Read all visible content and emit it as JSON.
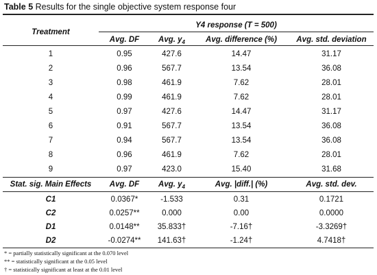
{
  "caption": {
    "label": "Table 5",
    "text": "Results for the single objective system response four"
  },
  "header": {
    "treatment": "Treatment",
    "group": "Y4 response (T = 500)",
    "avg_df": "Avg. DF",
    "avg_y": "Avg. y",
    "avg_y_sub": "4",
    "avg_diff": "Avg. difference (%)",
    "avg_std": "Avg. std. deviation"
  },
  "rows": [
    {
      "treatment": "1",
      "df": "0.95",
      "y": "427.6",
      "diff": "14.47",
      "std": "31.17"
    },
    {
      "treatment": "2",
      "df": "0.96",
      "y": "567.7",
      "diff": "13.54",
      "std": "36.08"
    },
    {
      "treatment": "3",
      "df": "0.98",
      "y": "461.9",
      "diff": "7.62",
      "std": "28.01"
    },
    {
      "treatment": "4",
      "df": "0.99",
      "y": "461.9",
      "diff": "7.62",
      "std": "28.01"
    },
    {
      "treatment": "5",
      "df": "0.97",
      "y": "427.6",
      "diff": "14.47",
      "std": "31.17"
    },
    {
      "treatment": "6",
      "df": "0.91",
      "y": "567.7",
      "diff": "13.54",
      "std": "36.08"
    },
    {
      "treatment": "7",
      "df": "0.94",
      "y": "567.7",
      "diff": "13.54",
      "std": "36.08"
    },
    {
      "treatment": "8",
      "df": "0.96",
      "y": "461.9",
      "diff": "7.62",
      "std": "28.01"
    },
    {
      "treatment": "9",
      "df": "0.97",
      "y": "423.0",
      "diff": "15.40",
      "std": "31.68"
    }
  ],
  "effects_header": {
    "label": "Stat. sig. Main Effects",
    "avg_df": "Avg. DF",
    "avg_y": "Avg. y",
    "avg_y_sub": "4",
    "avg_diff": "Avg. |diff.| (%)",
    "avg_std": "Avg. std. dev."
  },
  "effects": [
    {
      "name": "C1",
      "df": "0.0367*",
      "y": "-1.533",
      "diff": "0.31",
      "std": "0.1721"
    },
    {
      "name": "C2",
      "df": "0.0257**",
      "y": "0.000",
      "diff": "0.00",
      "std": "0.0000"
    },
    {
      "name": "D1",
      "df": "0.0148**",
      "y": "35.833†",
      "diff": "-7.16†",
      "std": "-3.3269†"
    },
    {
      "name": "D2",
      "df": "-0.0274**",
      "y": "141.63†",
      "diff": "-1.24†",
      "std": "4.7418†"
    }
  ],
  "notes": [
    "* = partially statistically significant at the 0.070 level",
    "** = statistically significant at the 0.05 level",
    "† = statistically significant at least at the 0.01 level"
  ]
}
